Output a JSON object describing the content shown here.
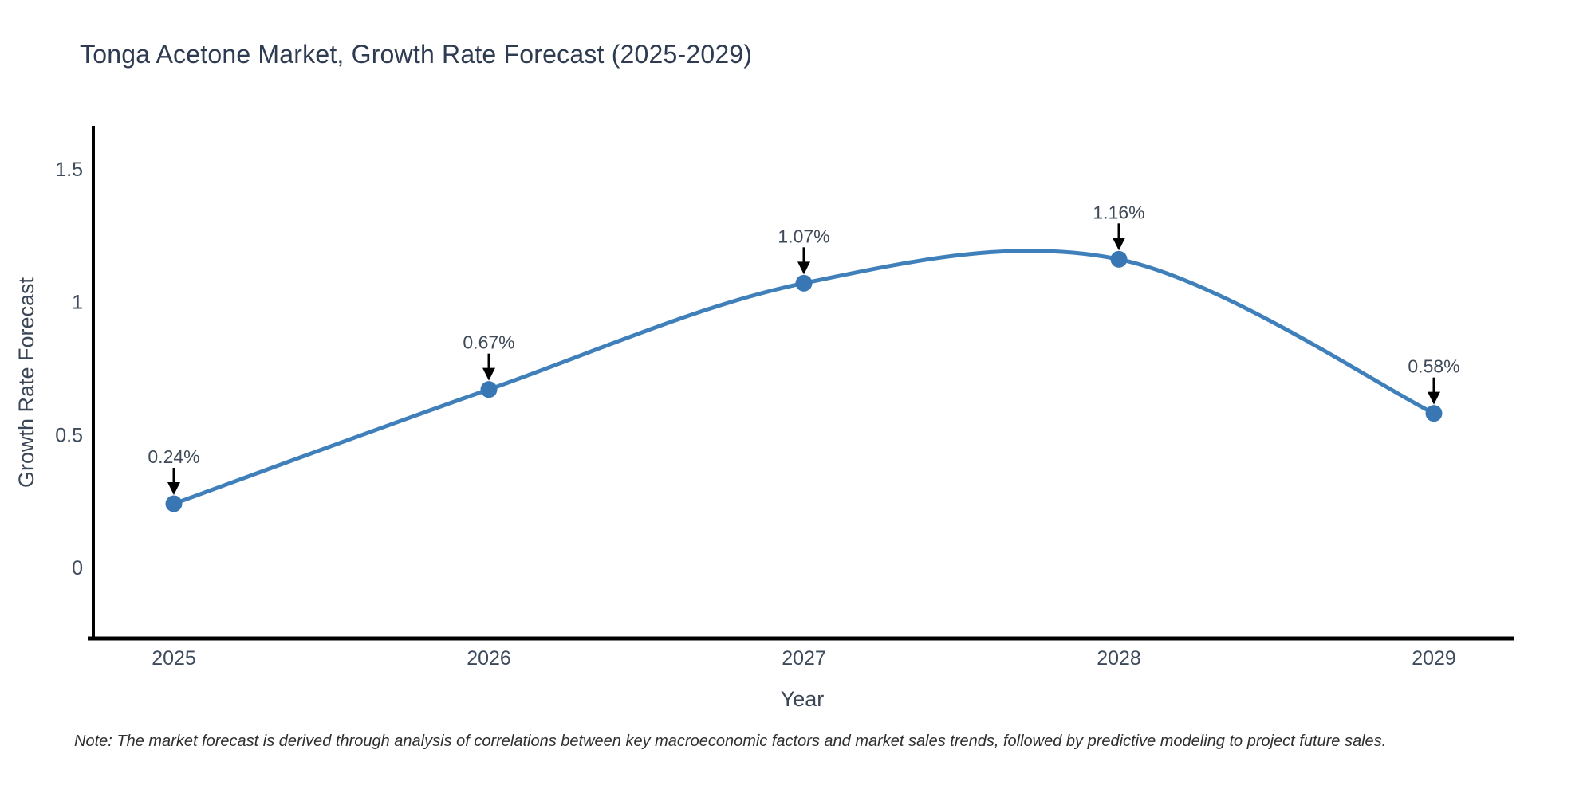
{
  "chart_data": {
    "type": "line",
    "title": "Tonga Acetone Market, Growth Rate Forecast (2025-2029)",
    "xlabel": "Year",
    "ylabel": "Growth Rate Forecast",
    "categories": [
      "2025",
      "2026",
      "2027",
      "2028",
      "2029"
    ],
    "series": [
      {
        "name": "Growth Rate Forecast",
        "values": [
          0.24,
          0.67,
          1.07,
          1.16,
          0.58
        ]
      }
    ],
    "point_labels": [
      "0.24%",
      "0.67%",
      "1.07%",
      "1.16%",
      "0.58%"
    ],
    "yticks": [
      "0",
      "0.5",
      "1",
      "1.5"
    ],
    "ytick_values": [
      0,
      0.5,
      1,
      1.5
    ],
    "ylim": [
      -0.27,
      1.66
    ],
    "line_shape": "spline",
    "grid": false,
    "legend": false,
    "line_color": "#4080ba",
    "marker_color": "#3876b4",
    "axis_color": "#000000",
    "annotation_arrow_color": "#000000",
    "note": "Note: The market forecast is derived through analysis of correlations between key macroeconomic factors and market sales trends, followed by predictive modeling to project future sales."
  }
}
